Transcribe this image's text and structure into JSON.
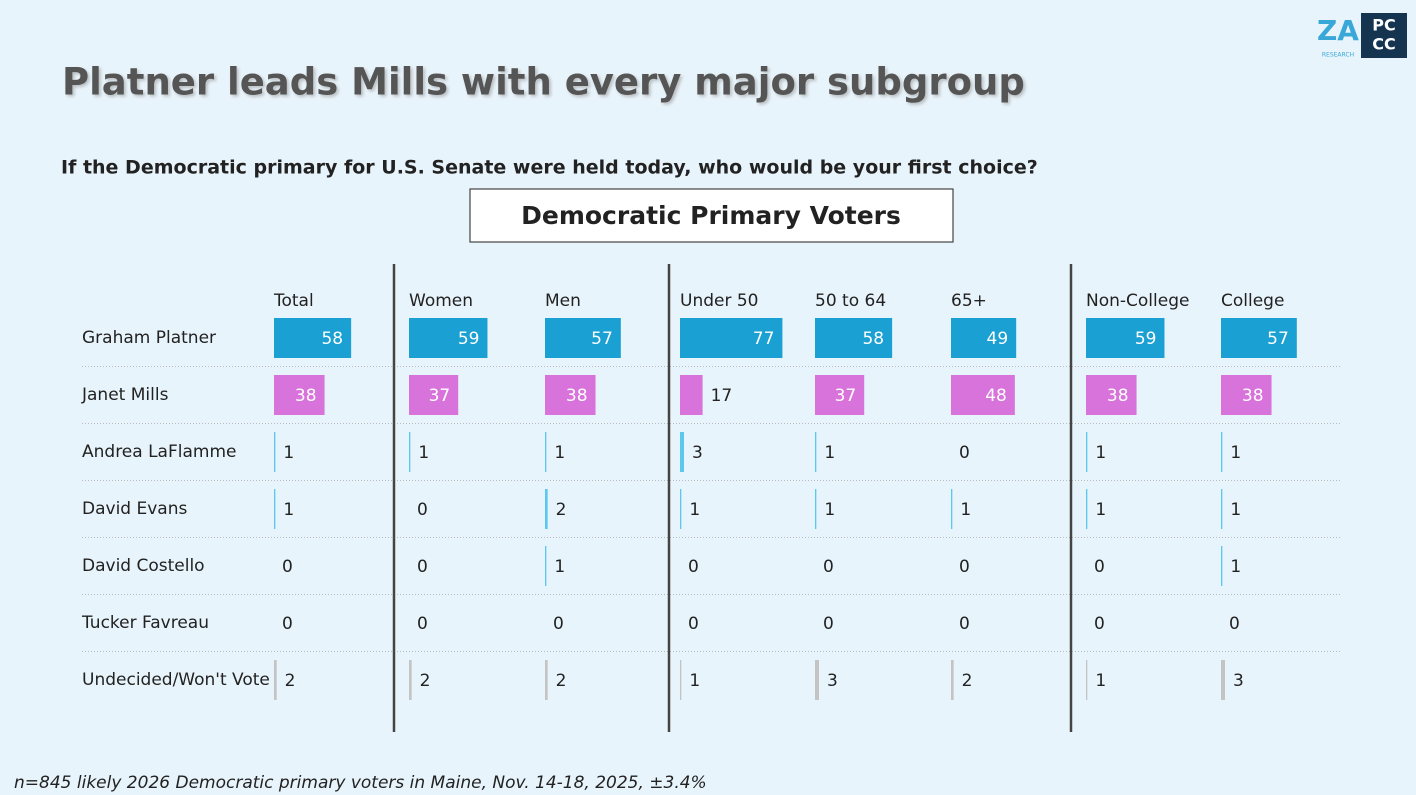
{
  "chart_data": {
    "type": "bar-table",
    "title": "Platner leads Mills with every major subgroup",
    "subtitle": "If the Democratic primary for U.S. Senate were held today, who would be your first choice?",
    "header": "Democratic Primary Voters",
    "footnote": "n=845 likely 2026 Democratic primary voters in Maine, Nov. 14-18, 2025, ±3.4%",
    "logo_texts": [
      "ZA",
      "RESEARCH",
      "PC",
      "CC"
    ],
    "categories": [
      "Graham Platner",
      "Janet Mills",
      "Andrea LaFlamme",
      "David Evans",
      "David Costello",
      "Tucker Favreau",
      "Undecided/Won't Vote"
    ],
    "colors": [
      "#1aa0d2",
      "#d873dc",
      "#5cc8ee",
      "#5cc8ee",
      "#5cc8ee",
      "#5cc8ee",
      "#c4c4c4"
    ],
    "series": [
      {
        "name": "Total",
        "values": [
          58,
          38,
          1,
          1,
          0,
          0,
          2
        ]
      },
      {
        "name": "Women",
        "values": [
          59,
          37,
          1,
          0,
          0,
          0,
          2
        ]
      },
      {
        "name": "Men",
        "values": [
          57,
          38,
          1,
          2,
          1,
          0,
          2
        ]
      },
      {
        "name": "Under 50",
        "values": [
          77,
          17,
          3,
          1,
          0,
          0,
          1
        ]
      },
      {
        "name": "50 to 64",
        "values": [
          58,
          37,
          1,
          1,
          0,
          0,
          3
        ]
      },
      {
        "name": "65+",
        "values": [
          49,
          48,
          0,
          1,
          0,
          0,
          2
        ]
      },
      {
        "name": "Non-College",
        "values": [
          59,
          38,
          1,
          1,
          0,
          0,
          1
        ]
      },
      {
        "name": "College",
        "values": [
          57,
          38,
          1,
          1,
          1,
          0,
          3
        ]
      }
    ]
  }
}
